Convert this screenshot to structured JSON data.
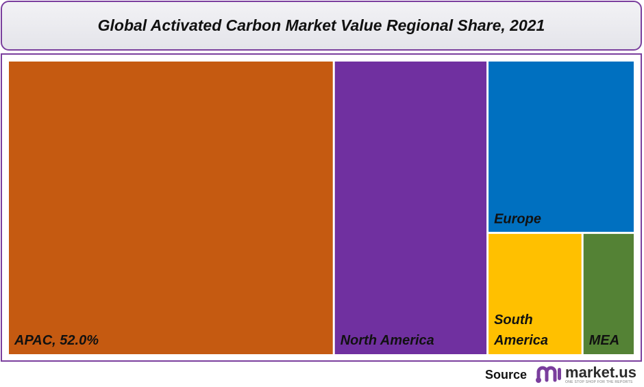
{
  "title": "Global Activated Carbon Market Value Regional Share, 2021",
  "chart_data": {
    "type": "treemap",
    "title": "Global Activated Carbon Market Value Regional Share, 2021",
    "unit": "%",
    "items": [
      {
        "name": "APAC",
        "label": "APAC, 52.0%",
        "value": 52.0,
        "color": "#c55a11"
      },
      {
        "name": "North America",
        "label": "North America",
        "value": 24.6,
        "color": "#7030a0"
      },
      {
        "name": "Europe",
        "label": "Europe",
        "value": 13.7,
        "color": "#0070c0"
      },
      {
        "name": "South America",
        "label": "South America",
        "value": 6.3,
        "color": "#ffc000"
      },
      {
        "name": "MEA",
        "label": "MEA",
        "value": 3.4,
        "color": "#548235"
      }
    ]
  },
  "source": {
    "label": "Source",
    "logo_text": "market.us",
    "logo_tagline": "ONE STOP SHOP FOR THE REPORTS",
    "logo_color": "#7a3e9d"
  }
}
